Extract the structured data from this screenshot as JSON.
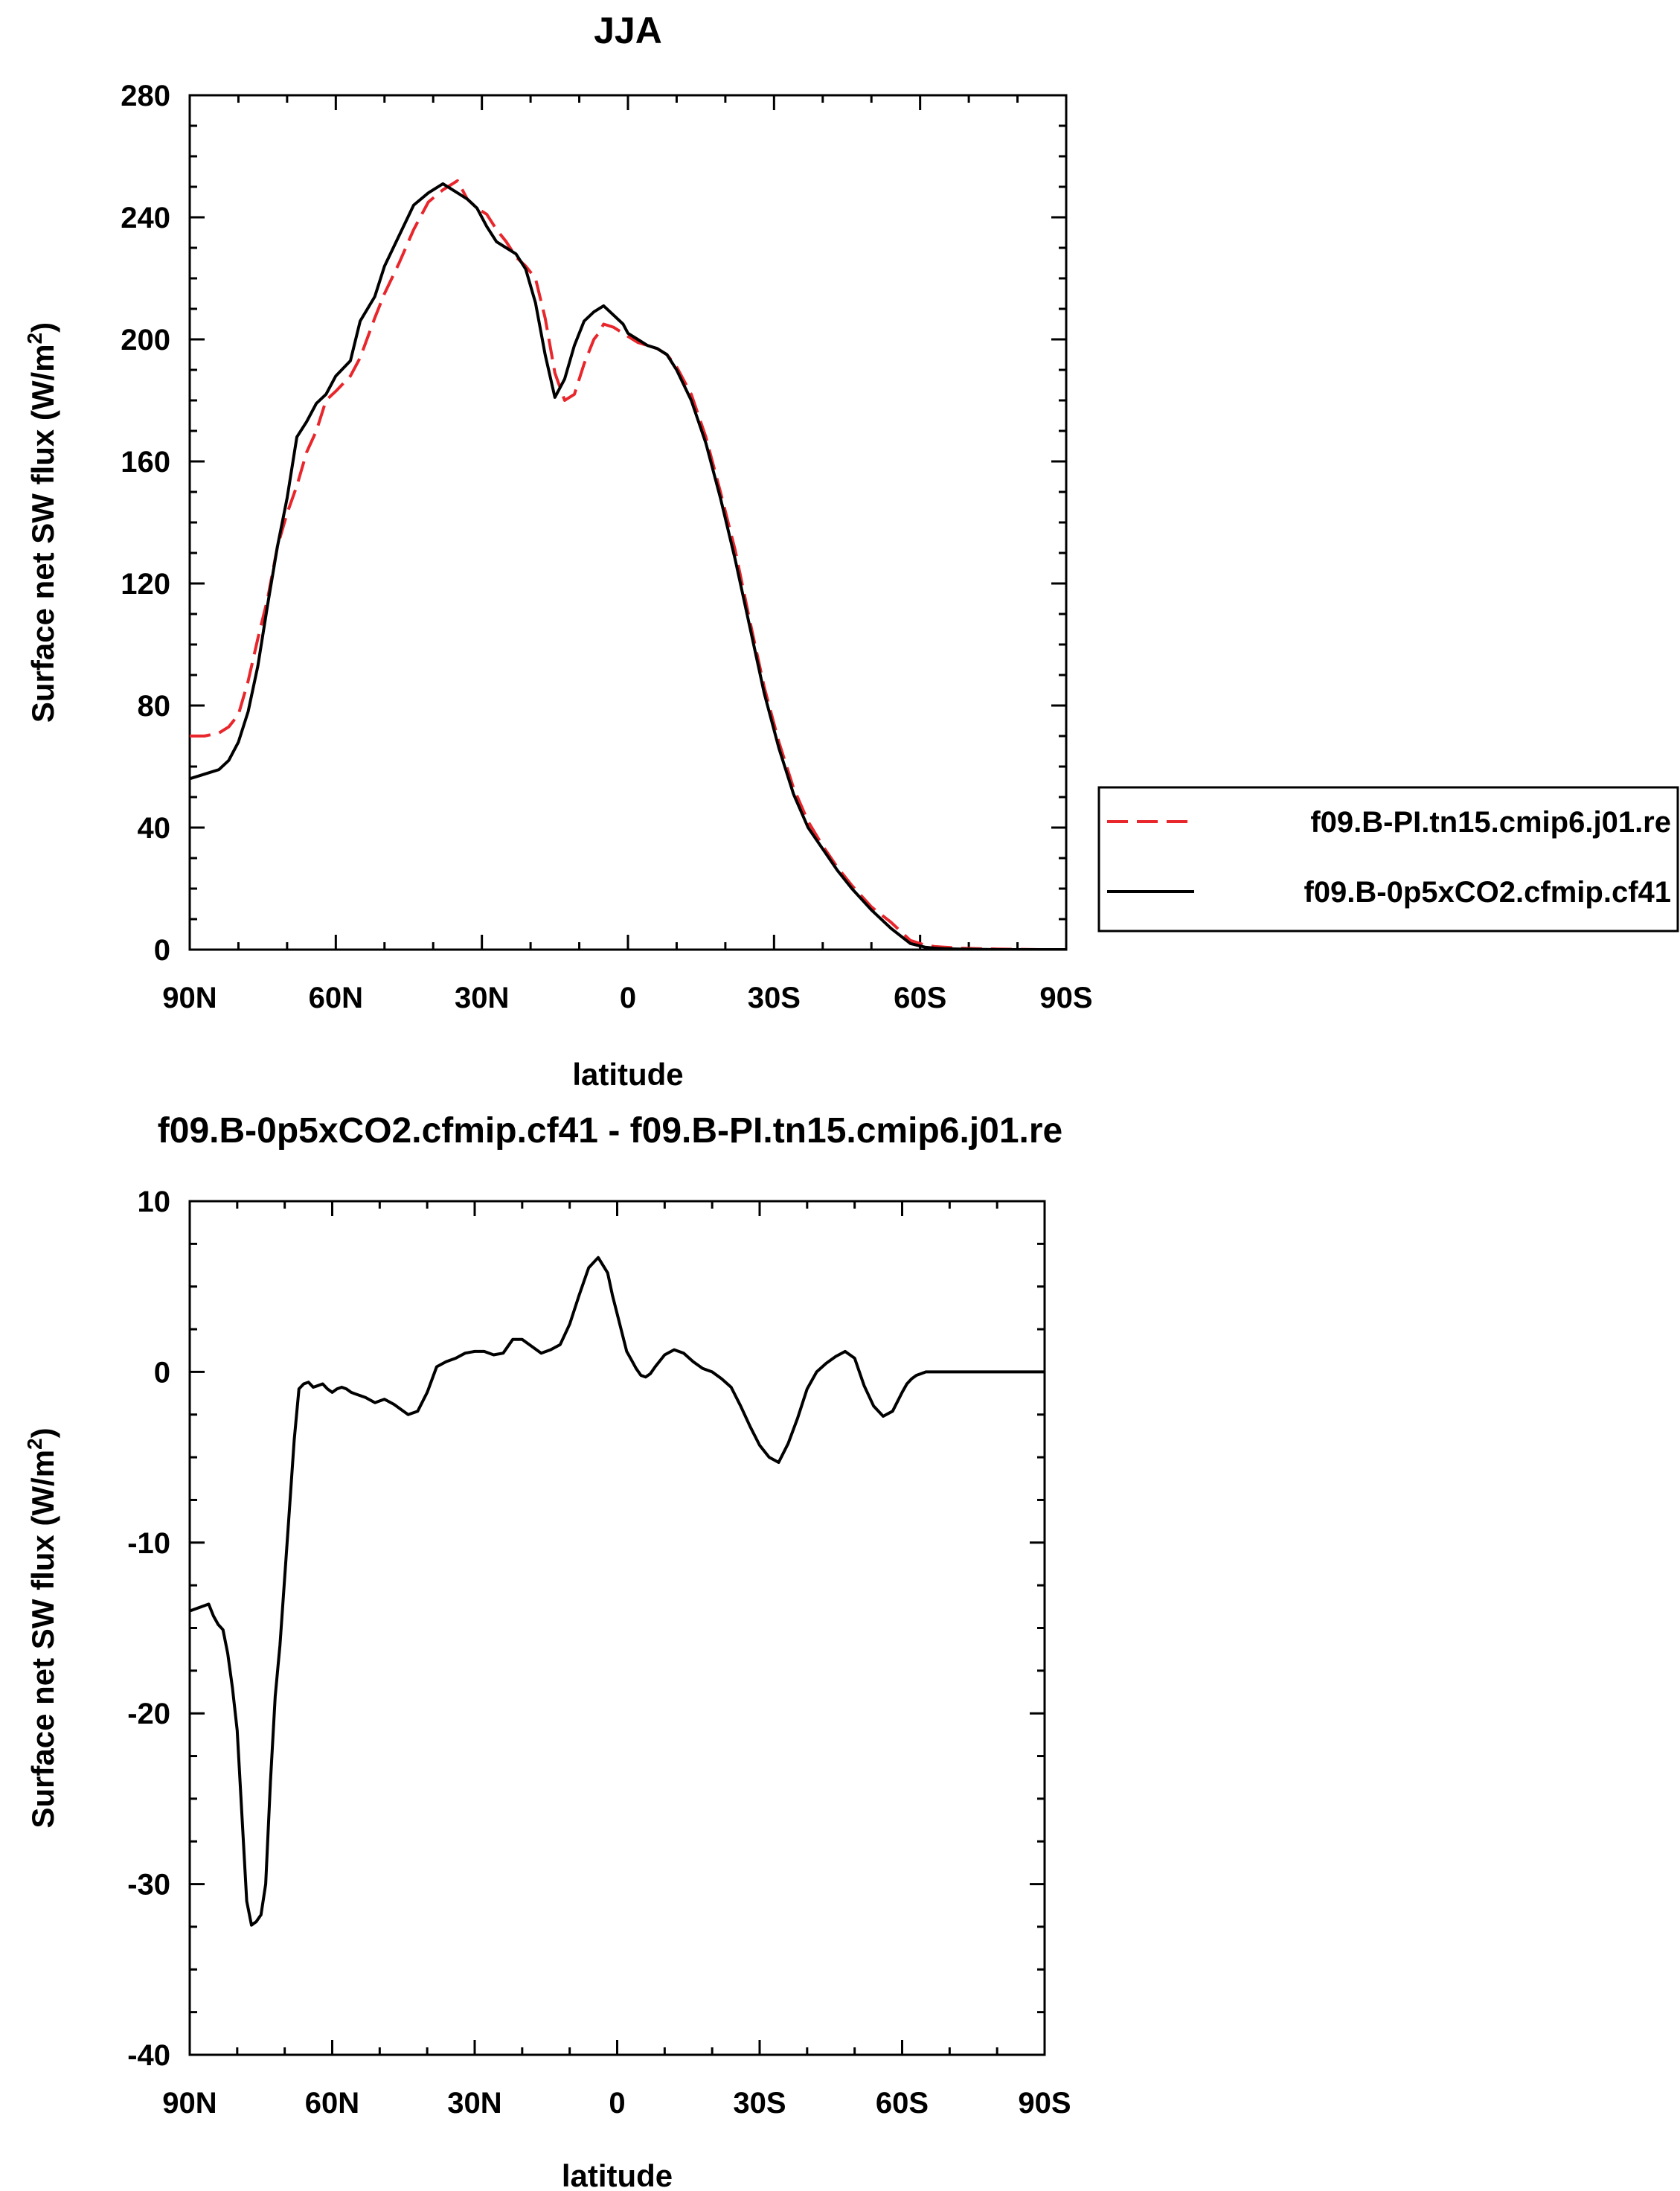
{
  "chart_data": [
    {
      "type": "line",
      "title": "JJA",
      "xlabel": "latitude",
      "ylabel": "Surface net SW flux (W/m",
      "ylabel_sup": "2",
      "ylabel_end": ")",
      "xlim": [
        90,
        -90
      ],
      "ylim": [
        0,
        280
      ],
      "xticks": [
        90,
        60,
        30,
        0,
        -30,
        -60,
        -90
      ],
      "xtick_labels": [
        "90N",
        "60N",
        "30N",
        "0",
        "30S",
        "60S",
        "90S"
      ],
      "yticks": [
        0,
        40,
        80,
        120,
        160,
        200,
        240,
        280
      ],
      "ytick_labels": [
        "0",
        "40",
        "80",
        "120",
        "160",
        "200",
        "240",
        "280"
      ],
      "legend_position": "right",
      "series": [
        {
          "name": "f09.B-PI.tn15.cmip6.j01.re",
          "color": "#e8262b",
          "dash": "dashed",
          "x": [
            90,
            87,
            84,
            82,
            80,
            78,
            76,
            74,
            72,
            70,
            68,
            66,
            64,
            62,
            60,
            57,
            55,
            52,
            50,
            47,
            44,
            41,
            38,
            35,
            33,
            31,
            29,
            27,
            25,
            23,
            21,
            19,
            17,
            15,
            13,
            11,
            9,
            7,
            6,
            5,
            3,
            1,
            0,
            -2,
            -4,
            -6,
            -8,
            -10,
            -13,
            -16,
            -19,
            -22,
            -25,
            -28,
            -31,
            -34,
            -37,
            -40,
            -43,
            -46,
            -50,
            -54,
            -58,
            -61,
            -63,
            -65,
            -68,
            -72,
            -76,
            -80,
            -85,
            -90
          ],
          "y": [
            70,
            70,
            71,
            73,
            77,
            88,
            102,
            115,
            132,
            143,
            152,
            163,
            170,
            180,
            183,
            188,
            194,
            207,
            215,
            225,
            236,
            245,
            249,
            252,
            246,
            243,
            241,
            236,
            232,
            227,
            224,
            220,
            207,
            189,
            180,
            182,
            192,
            200,
            202,
            205,
            204,
            202,
            201,
            199,
            198,
            197,
            195,
            191,
            182,
            168,
            150,
            131,
            108,
            86,
            68,
            53,
            42,
            34,
            27,
            21,
            14,
            9,
            3,
            1.5,
            1,
            0.8,
            0.5,
            0.3,
            0.2,
            0.1,
            0,
            0
          ]
        },
        {
          "name": "f09.B-0p5xCO2.cfmip.cf41",
          "color": "#000000",
          "dash": "solid",
          "x": [
            90,
            88,
            86,
            84,
            82,
            80,
            78,
            76,
            74,
            72,
            70,
            68,
            66,
            64,
            62,
            60,
            57,
            55,
            52,
            50,
            47,
            44,
            41,
            38,
            35,
            33,
            31,
            29,
            27,
            25,
            23,
            21,
            19,
            17,
            15,
            13,
            11,
            9,
            7,
            5,
            3,
            1,
            0,
            -2,
            -4,
            -6,
            -8,
            -10,
            -13,
            -16,
            -19,
            -22,
            -25,
            -28,
            -31,
            -34,
            -37,
            -40,
            -43,
            -46,
            -50,
            -54,
            -58,
            -61,
            -63,
            -65,
            -68,
            -72,
            -76,
            -80,
            -85,
            -90
          ],
          "y": [
            56,
            57,
            58,
            59,
            62,
            68,
            78,
            93,
            113,
            132,
            148,
            168,
            173,
            179,
            182,
            188,
            193,
            206,
            214,
            224,
            234,
            244,
            248,
            251,
            248,
            246,
            243,
            237,
            232,
            230,
            228,
            223,
            212,
            195,
            181,
            187,
            198,
            206,
            209,
            211,
            208,
            205,
            202,
            200,
            198,
            197,
            195,
            190,
            180,
            166,
            148,
            128,
            106,
            84,
            66,
            51,
            40,
            33,
            26,
            20,
            13,
            7,
            2,
            0.8,
            0.5,
            0.3,
            0.2,
            0.1,
            0,
            0,
            0,
            0
          ]
        }
      ]
    },
    {
      "type": "line",
      "title": "f09.B-0p5xCO2.cfmip.cf41 - f09.B-PI.tn15.cmip6.j01.re",
      "xlabel": "latitude",
      "ylabel": "Surface net SW flux (W/m",
      "ylabel_sup": "2",
      "ylabel_end": ")",
      "xlim": [
        90,
        -90
      ],
      "ylim": [
        -40,
        10
      ],
      "xticks": [
        90,
        60,
        30,
        0,
        -30,
        -60,
        -90
      ],
      "xtick_labels": [
        "90N",
        "60N",
        "30N",
        "0",
        "30S",
        "60S",
        "90S"
      ],
      "yticks": [
        10,
        0,
        -10,
        -20,
        -30,
        -40
      ],
      "ytick_labels": [
        "10",
        "0",
        "-10",
        "-20",
        "-30",
        "-40"
      ],
      "series": [
        {
          "color": "#000000",
          "dash": "solid",
          "x": [
            90,
            88,
            86,
            85,
            84,
            83,
            82,
            81,
            80,
            79,
            78,
            77,
            76,
            75,
            74,
            73,
            72,
            71,
            70,
            69,
            68,
            67,
            66,
            65,
            64,
            63,
            62,
            61,
            60,
            59,
            58,
            57,
            56,
            55,
            53,
            51,
            49,
            47,
            45,
            44,
            42,
            40,
            38,
            36,
            34,
            32,
            30,
            28,
            26,
            24,
            22,
            20,
            18,
            16,
            14,
            12,
            10,
            8,
            6,
            4,
            2,
            1,
            0,
            -1,
            -2,
            -3,
            -4,
            -5,
            -6,
            -7,
            -8,
            -10,
            -12,
            -14,
            -16,
            -18,
            -20,
            -22,
            -24,
            -26,
            -28,
            -30,
            -32,
            -34,
            -36,
            -38,
            -40,
            -42,
            -44,
            -46,
            -48,
            -50,
            -52,
            -54,
            -56,
            -58,
            -60,
            -61,
            -62,
            -63,
            -64,
            -65,
            -67,
            -69,
            -72,
            -76,
            -80,
            -85,
            -90
          ],
          "y": [
            -14,
            -13.8,
            -13.6,
            -14.3,
            -14.8,
            -15.1,
            -16.5,
            -18.5,
            -21,
            -26,
            -31,
            -32.4,
            -32.2,
            -31.8,
            -30,
            -24,
            -19,
            -16,
            -12,
            -8,
            -4,
            -1,
            -0.7,
            -0.6,
            -0.9,
            -0.8,
            -0.7,
            -1.0,
            -1.2,
            -1.0,
            -0.9,
            -1.0,
            -1.2,
            -1.3,
            -1.5,
            -1.8,
            -1.6,
            -1.9,
            -2.3,
            -2.5,
            -2.3,
            -1.2,
            0.3,
            0.6,
            0.8,
            1.1,
            1.2,
            1.2,
            1.0,
            1.1,
            1.9,
            1.9,
            1.5,
            1.1,
            1.3,
            1.6,
            2.8,
            4.5,
            6.1,
            6.7,
            5.8,
            4.5,
            3.4,
            2.3,
            1.2,
            0.7,
            0.2,
            -0.2,
            -0.3,
            -0.1,
            0.3,
            1.0,
            1.3,
            1.1,
            0.6,
            0.2,
            0,
            -0.4,
            -0.9,
            -2.0,
            -3.2,
            -4.3,
            -5.0,
            -5.3,
            -4.2,
            -2.7,
            -1.0,
            0,
            0.5,
            0.9,
            1.2,
            0.8,
            -0.8,
            -2.0,
            -2.6,
            -2.3,
            -1.2,
            -0.7,
            -0.4,
            -0.2,
            -0.1,
            0,
            0,
            0,
            0,
            0,
            0,
            0,
            0
          ]
        }
      ]
    }
  ]
}
